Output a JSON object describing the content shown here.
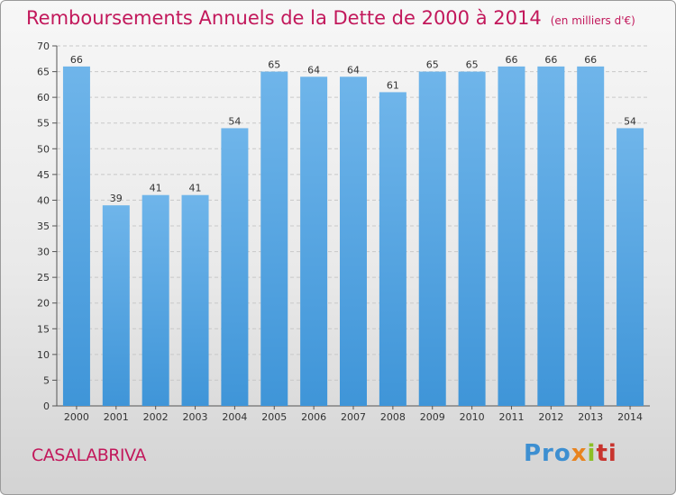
{
  "title": "Remboursements Annuels de la Dette de 2000 à 2014",
  "subtitle": "(en milliers d'€)",
  "commune": "CASALABRIVA",
  "logo": {
    "p1": "Pro",
    "p2": "x",
    "p3": "i",
    "p4": "ti"
  },
  "colors": {
    "bar": "#3f95d8",
    "bar_light": "#6fb5ea",
    "title": "#c2185b",
    "grid": "#c8c8c8"
  },
  "chart_data": {
    "type": "bar",
    "title": "Remboursements Annuels de la Dette de 2000 à 2014",
    "xlabel": "",
    "ylabel": "",
    "categories": [
      "2000",
      "2001",
      "2002",
      "2003",
      "2004",
      "2005",
      "2006",
      "2007",
      "2008",
      "2009",
      "2010",
      "2011",
      "2012",
      "2013",
      "2014"
    ],
    "values": [
      66,
      39,
      41,
      41,
      54,
      65,
      64,
      64,
      61,
      65,
      65,
      66,
      66,
      66,
      54
    ],
    "ylim": [
      0,
      70
    ],
    "yticks": [
      0,
      5,
      10,
      15,
      20,
      25,
      30,
      35,
      40,
      45,
      50,
      55,
      60,
      65,
      70
    ],
    "grid": true
  }
}
